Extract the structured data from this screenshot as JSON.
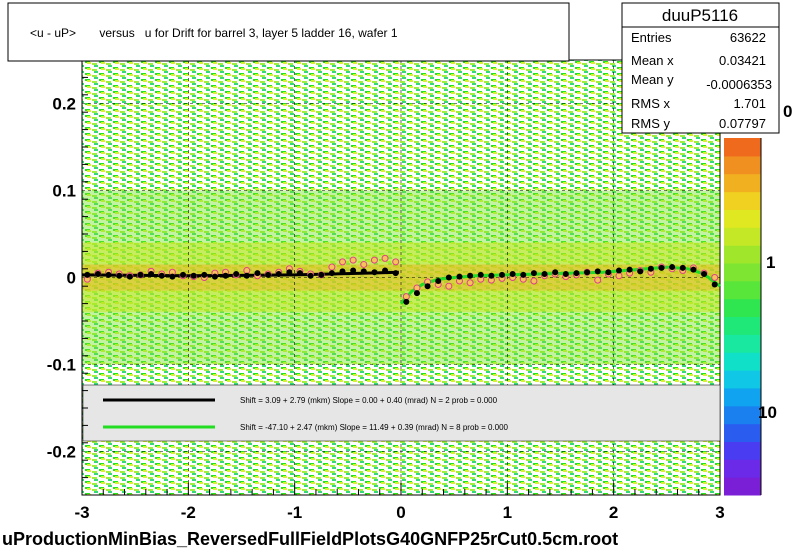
{
  "chart_data": {
    "type": "scatter",
    "title": "<u - uP>       versus   u for Drift for barrel 3, layer 5 ladder 16, wafer 1",
    "footer": "uProductionMinBias_ReversedFullFieldPlotsG40GNFP25rCut0.5cm.root",
    "xlim": [
      -3,
      3
    ],
    "ylim": [
      -0.25,
      0.25
    ],
    "x_ticks": [
      "-3",
      "-2",
      "-1",
      "0",
      "1",
      "2",
      "3"
    ],
    "y_ticks": [
      "0.2",
      "0.1",
      "0",
      "-0.1",
      "-0.2"
    ],
    "grid": true,
    "colorbar": {
      "scale": "log",
      "labels": [
        "1",
        "10"
      ],
      "partial_top_label": "0"
    },
    "stats": {
      "name": "duuP5116",
      "rows": [
        {
          "label": "Entries",
          "value": "63622"
        },
        {
          "label": "Mean x",
          "value": "0.03421"
        },
        {
          "label": "Mean y",
          "value": "-0.0006353"
        },
        {
          "label": "RMS x",
          "value": "1.701"
        },
        {
          "label": "RMS y",
          "value": "0.07797"
        }
      ]
    },
    "legend": {
      "placement": "lower-center",
      "entries": [
        {
          "color": "#000000",
          "text": "Shift =     3.09 + 2.79 (mkm) Slope =     0.00 + 0.40 (mrad)  N = 2 prob = 0.000"
        },
        {
          "color": "#22dd22",
          "text": "Shift =   -47.10 + 2.47 (mkm) Slope =    11.49 + 0.39 (mrad)  N = 8 prob = 0.000"
        }
      ]
    },
    "series": [
      {
        "style": "black-points",
        "x": [
          -2.95,
          -2.85,
          -2.75,
          -2.65,
          -2.55,
          -2.45,
          -2.35,
          -2.25,
          -2.15,
          -2.05,
          -1.95,
          -1.85,
          -1.75,
          -1.65,
          -1.55,
          -1.45,
          -1.35,
          -1.25,
          -1.15,
          -1.05,
          -0.95,
          -0.85,
          -0.75,
          -0.65,
          -0.55,
          -0.45,
          -0.35,
          -0.25,
          -0.15,
          -0.05,
          0.05,
          0.15,
          0.25,
          0.35,
          0.45,
          0.55,
          0.65,
          0.75,
          0.85,
          0.95,
          1.05,
          1.15,
          1.25,
          1.35,
          1.45,
          1.55,
          1.65,
          1.75,
          1.85,
          1.95,
          2.05,
          2.15,
          2.25,
          2.35,
          2.45,
          2.55,
          2.65,
          2.75,
          2.85,
          2.95
        ],
        "y": [
          0.003,
          0.004,
          0.003,
          0.002,
          0.001,
          0.003,
          0.004,
          0.002,
          0.001,
          0.003,
          0.002,
          0.003,
          0.001,
          0.002,
          0.004,
          0.002,
          0.005,
          0.003,
          0.004,
          0.006,
          0.005,
          0.002,
          0.003,
          0.005,
          0.007,
          0.008,
          0.007,
          0.006,
          0.008,
          0.005,
          -0.028,
          -0.018,
          -0.01,
          -0.004,
          0.0,
          0.001,
          0.002,
          0.003,
          0.002,
          0.003,
          0.004,
          0.003,
          0.005,
          0.004,
          0.006,
          0.004,
          0.005,
          0.006,
          0.007,
          0.006,
          0.008,
          0.009,
          0.007,
          0.01,
          0.011,
          0.012,
          0.011,
          0.009,
          0.004,
          -0.008
        ]
      },
      {
        "style": "pink-open-circles",
        "x": [
          -2.95,
          -2.85,
          -2.75,
          -2.65,
          -2.55,
          -2.45,
          -2.35,
          -2.25,
          -2.15,
          -2.05,
          -1.95,
          -1.85,
          -1.75,
          -1.65,
          -1.55,
          -1.45,
          -1.35,
          -1.25,
          -1.15,
          -1.05,
          -0.95,
          -0.85,
          -0.75,
          -0.65,
          -0.55,
          -0.45,
          -0.35,
          -0.25,
          -0.15,
          -0.05,
          0.05,
          0.15,
          0.25,
          0.35,
          0.45,
          0.55,
          0.65,
          0.75,
          0.85,
          0.95,
          1.05,
          1.15,
          1.25,
          1.35,
          1.45,
          1.55,
          1.65,
          1.75,
          1.85,
          1.95,
          2.05,
          2.15,
          2.25,
          2.35,
          2.45,
          2.55,
          2.65,
          2.75,
          2.85,
          2.95
        ],
        "y": [
          -0.002,
          0.005,
          0.006,
          0.004,
          0.002,
          0.003,
          0.007,
          0.004,
          0.006,
          0.002,
          0.001,
          0.0,
          0.005,
          0.006,
          0.003,
          0.008,
          0.002,
          0.004,
          0.006,
          0.01,
          0.007,
          0.004,
          0.003,
          0.012,
          0.018,
          0.02,
          0.015,
          0.02,
          0.022,
          0.018,
          -0.022,
          -0.012,
          -0.005,
          -0.008,
          -0.01,
          -0.004,
          -0.006,
          -0.002,
          -0.003,
          -0.001,
          0.0,
          -0.002,
          -0.004,
          0.002,
          0.004,
          0.001,
          0.003,
          0.006,
          -0.003,
          0.004,
          0.002,
          0.005,
          0.008,
          0.006,
          0.012,
          0.01,
          0.008,
          0.011,
          0.005,
          0.0
        ]
      },
      {
        "style": "black-fit",
        "x": [
          -3.0,
          -2.0,
          -1.0,
          -0.02
        ],
        "y": [
          0.003,
          0.002,
          0.003,
          0.006
        ]
      },
      {
        "style": "green-fit",
        "x": [
          0.0,
          0.1,
          0.2,
          0.35,
          0.5,
          0.7,
          1.0,
          1.3,
          1.6,
          1.9,
          2.2,
          2.5,
          2.7,
          2.85,
          3.0
        ],
        "y": [
          -0.03,
          -0.016,
          -0.008,
          -0.002,
          0.0,
          0.002,
          0.003,
          0.004,
          0.005,
          0.006,
          0.009,
          0.012,
          0.01,
          0.004,
          -0.01
        ]
      }
    ]
  }
}
